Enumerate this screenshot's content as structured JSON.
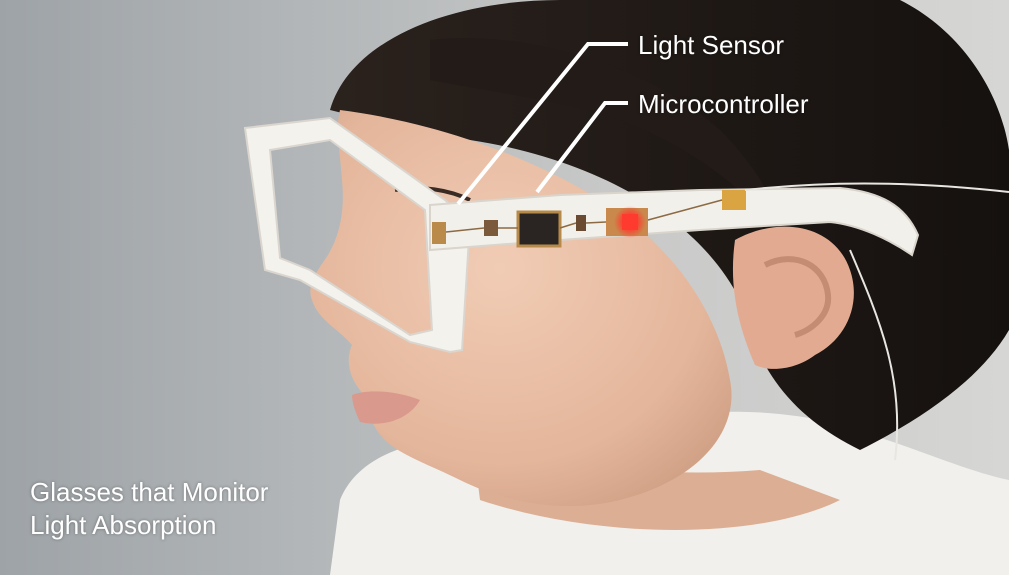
{
  "callouts": {
    "light_sensor": "Light Sensor",
    "microcontroller": "Microcontroller"
  },
  "caption": {
    "line1": "Glasses that Monitor",
    "line2": "Light Absorption"
  },
  "colors": {
    "text": "#ffffff",
    "frame": "#f3f1ec",
    "led": "#ff3b30",
    "hair": "#1f1916",
    "skin": "#e9c0a6"
  }
}
